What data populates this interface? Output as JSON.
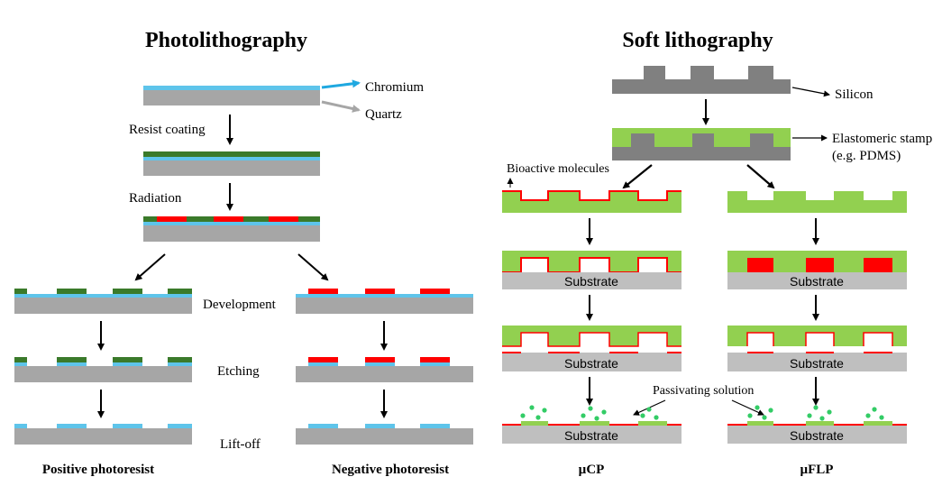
{
  "titles": {
    "photolithography": "Photolithography",
    "soft_lithography": "Soft lithography"
  },
  "photo": {
    "chromium": "Chromium",
    "quartz": "Quartz",
    "resist_coating": "Resist coating",
    "radiation": "Radiation",
    "development": "Development",
    "etching": "Etching",
    "lift_off": "Lift-off",
    "positive": "Positive photoresist",
    "negative": "Negative photoresist"
  },
  "soft": {
    "silicon": "Silicon",
    "stamp_line1": "Elastomeric stamp",
    "stamp_line2": "(e.g. PDMS)",
    "bioactive": "Bioactive molecules",
    "substrate": "Substrate",
    "passivating": "Passivating solution",
    "ucp": "µCP",
    "uflp": "µFLP"
  },
  "colors": {
    "chromium": "#5ec4ea",
    "quartz": "#a6a6a6",
    "resist": "#3a7a2a",
    "exposed": "#ff0000",
    "pdms": "#92d050",
    "silicon": "#808080",
    "substrate": "#bfbfbf",
    "dots": "#33cc66"
  },
  "icons": [
    "arrow-down-icon",
    "arrow-diagonal-icon",
    "pointer-arrow-icon"
  ]
}
